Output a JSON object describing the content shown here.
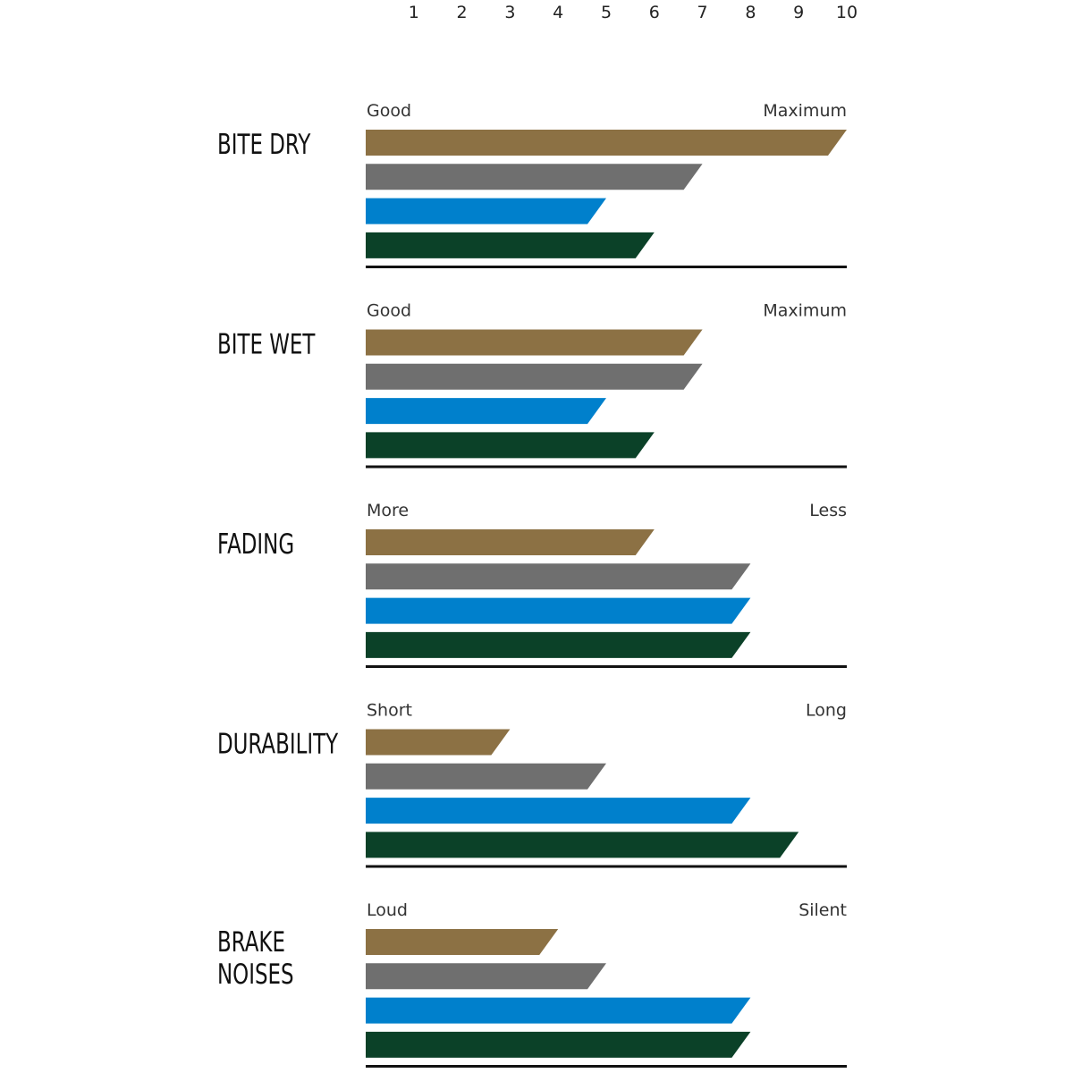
{
  "chart_data": {
    "type": "bar",
    "orientation": "horizontal",
    "xlim": [
      0,
      10
    ],
    "ticks": [
      "1",
      "2",
      "3",
      "4",
      "5",
      "6",
      "7",
      "8",
      "9",
      "10"
    ],
    "series_colors": [
      "#8c7144",
      "#6f6f6f",
      "#0080cc",
      "#0b4128"
    ],
    "grid": false,
    "groups": [
      {
        "label": [
          "BITE DRY"
        ],
        "low": "Good",
        "high": "Maximum",
        "values": [
          10,
          7,
          5,
          6
        ]
      },
      {
        "label": [
          "BITE WET"
        ],
        "low": "Good",
        "high": "Maximum",
        "values": [
          7,
          7,
          5,
          6
        ]
      },
      {
        "label": [
          "FADING"
        ],
        "low": "More",
        "high": "Less",
        "values": [
          6,
          8,
          8,
          8
        ]
      },
      {
        "label": [
          "DURABILITY"
        ],
        "low": "Short",
        "high": "Long",
        "values": [
          3,
          5,
          8,
          9
        ]
      },
      {
        "label": [
          "BRAKE",
          "NOISES"
        ],
        "low": "Loud",
        "high": "Silent",
        "values": [
          4,
          5,
          8,
          8
        ]
      }
    ]
  }
}
